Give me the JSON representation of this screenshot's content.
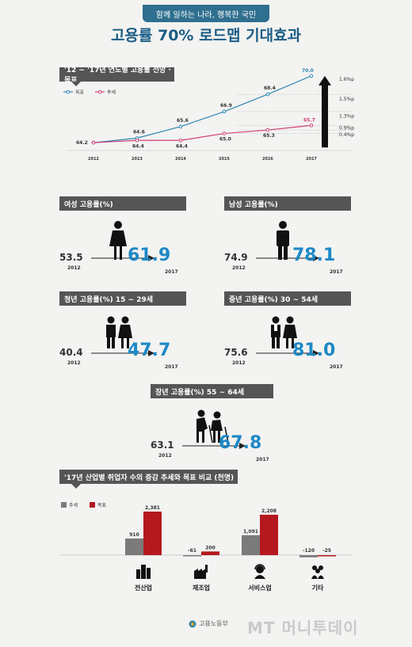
{
  "header": {
    "badge": "함께 일하는 나라, 행복한 국민",
    "title": "고용률 70% 로드맵 기대효과"
  },
  "chart_data": [
    {
      "type": "line",
      "title": "'12 ~ '17년 연도별 고용률 전망 · 목표",
      "x": [
        "2012",
        "2013",
        "2014",
        "2015",
        "2016",
        "2017"
      ],
      "series": [
        {
          "name": "목표",
          "values": [
            64.2,
            64.6,
            65.6,
            66.9,
            68.4,
            70.0
          ],
          "color": "#2a88b3"
        },
        {
          "name": "추세",
          "values": [
            64.2,
            64.4,
            64.4,
            65.0,
            65.3,
            65.7
          ],
          "color": "#d23f7a"
        }
      ],
      "value_labels": [
        "64.2",
        "64.6",
        "65.6",
        "66.9",
        "68.4",
        "70.0",
        "64.4",
        "64.4",
        "65.0",
        "65.3",
        "65.7"
      ],
      "gap_labels": [
        "1.6%p",
        "1.5%p",
        "1.3%p",
        "0.9%p",
        "0.4%p"
      ],
      "ylim": [
        63.8,
        70.4
      ],
      "legend_position": "top-left"
    },
    {
      "type": "bar",
      "title": "'17년 산업별 취업자 수의 증감 추세와 목표 비교 (천명)",
      "categories": [
        "전산업",
        "제조업",
        "서비스업",
        "기타"
      ],
      "series": [
        {
          "name": "추세",
          "values": [
            910,
            -61,
            1091,
            -120
          ],
          "labels": [
            "910",
            "-61",
            "1,091",
            "-120"
          ],
          "color": "#7b7b7b"
        },
        {
          "name": "목표",
          "values": [
            2381,
            200,
            2208,
            -25
          ],
          "labels": [
            "2,381",
            "200",
            "2,208",
            "-25"
          ],
          "color": "#b5191f"
        }
      ],
      "legend_position": "top-left"
    }
  ],
  "stats": [
    {
      "title": "여성 고용률(%)",
      "from": "53.5",
      "from_year": "2012",
      "to": "61.9",
      "to_year": "2017"
    },
    {
      "title": "남성 고용률(%)",
      "from": "74.9",
      "from_year": "2012",
      "to": "78.1",
      "to_year": "2017"
    },
    {
      "title": "청년 고용률(%) 15 ~ 29세",
      "from": "40.4",
      "from_year": "2012",
      "to": "47.7",
      "to_year": "2017"
    },
    {
      "title": "중년 고용률(%) 30 ~ 54세",
      "from": "75.6",
      "from_year": "2012",
      "to": "81.0",
      "to_year": "2017"
    },
    {
      "title": "장년 고용률(%) 55 ~ 64세",
      "from": "63.1",
      "from_year": "2012",
      "to": "67.8",
      "to_year": "2017"
    }
  ],
  "footer": {
    "logo": "고용노동부",
    "watermark": "MT 머니투데이"
  }
}
